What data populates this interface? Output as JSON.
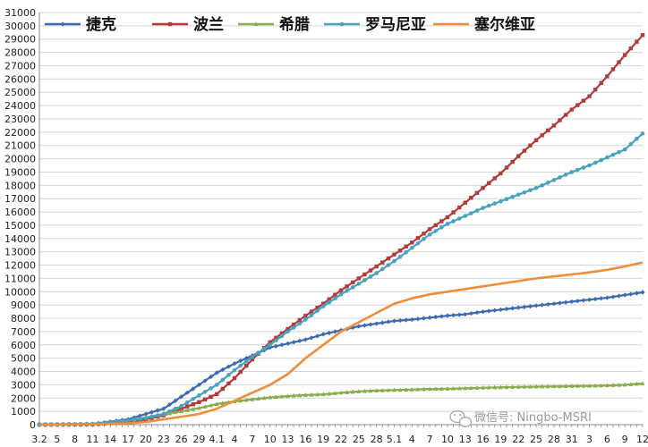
{
  "chart_data": {
    "type": "line",
    "title": "",
    "xlabel": "",
    "ylabel": "",
    "ylim": [
      0,
      31000
    ],
    "yticks": [
      0,
      1000,
      2000,
      3000,
      4000,
      5000,
      6000,
      7000,
      8000,
      9000,
      10000,
      11000,
      12000,
      13000,
      14000,
      15000,
      16000,
      17000,
      18000,
      19000,
      20000,
      21000,
      22000,
      23000,
      24000,
      25000,
      26000,
      27000,
      28000,
      29000,
      30000,
      31000
    ],
    "x_tick_labels": [
      "3.2",
      "5",
      "8",
      "11",
      "14",
      "17",
      "20",
      "23",
      "26",
      "29",
      "4.1",
      "4",
      "7",
      "10",
      "13",
      "16",
      "19",
      "22",
      "25",
      "28",
      "5.1",
      "4",
      "7",
      "10",
      "13",
      "16",
      "19",
      "22",
      "25",
      "28",
      "31",
      "3",
      "6",
      "9",
      "12"
    ],
    "x_tick_day_index": [
      0,
      3,
      6,
      9,
      12,
      15,
      18,
      21,
      24,
      27,
      30,
      33,
      36,
      39,
      42,
      45,
      48,
      51,
      54,
      57,
      60,
      63,
      66,
      69,
      72,
      75,
      78,
      81,
      84,
      87,
      90,
      93,
      96,
      99,
      102
    ],
    "grid": "horizontal",
    "legend_position": "top",
    "series": [
      {
        "name": "捷克",
        "color": "#3d6ab0",
        "marker": "diamond",
        "points": [
          [
            0,
            10
          ],
          [
            9,
            60
          ],
          [
            15,
            400
          ],
          [
            18,
            800
          ],
          [
            21,
            1200
          ],
          [
            24,
            2100
          ],
          [
            27,
            3000
          ],
          [
            30,
            3900
          ],
          [
            33,
            4600
          ],
          [
            36,
            5200
          ],
          [
            39,
            5800
          ],
          [
            42,
            6100
          ],
          [
            45,
            6400
          ],
          [
            48,
            6800
          ],
          [
            51,
            7100
          ],
          [
            54,
            7400
          ],
          [
            57,
            7600
          ],
          [
            60,
            7800
          ],
          [
            63,
            7900
          ],
          [
            66,
            8050
          ],
          [
            69,
            8200
          ],
          [
            72,
            8300
          ],
          [
            75,
            8500
          ],
          [
            78,
            8650
          ],
          [
            81,
            8800
          ],
          [
            84,
            8950
          ],
          [
            87,
            9100
          ],
          [
            90,
            9250
          ],
          [
            93,
            9400
          ],
          [
            96,
            9550
          ],
          [
            99,
            9750
          ],
          [
            102,
            9950
          ]
        ]
      },
      {
        "name": "波兰",
        "color": "#b33a3a",
        "marker": "square",
        "points": [
          [
            0,
            0
          ],
          [
            9,
            20
          ],
          [
            15,
            200
          ],
          [
            18,
            400
          ],
          [
            21,
            700
          ],
          [
            24,
            1200
          ],
          [
            27,
            1700
          ],
          [
            30,
            2300
          ],
          [
            33,
            3500
          ],
          [
            36,
            4900
          ],
          [
            39,
            6200
          ],
          [
            42,
            7200
          ],
          [
            45,
            8200
          ],
          [
            48,
            9100
          ],
          [
            51,
            10100
          ],
          [
            54,
            11000
          ],
          [
            57,
            11900
          ],
          [
            60,
            12800
          ],
          [
            63,
            13700
          ],
          [
            66,
            14700
          ],
          [
            69,
            15600
          ],
          [
            72,
            16700
          ],
          [
            75,
            17800
          ],
          [
            78,
            18900
          ],
          [
            81,
            20200
          ],
          [
            84,
            21400
          ],
          [
            87,
            22500
          ],
          [
            90,
            23700
          ],
          [
            93,
            24700
          ],
          [
            96,
            26200
          ],
          [
            99,
            27800
          ],
          [
            102,
            29300
          ]
        ]
      },
      {
        "name": "希腊",
        "color": "#8aac4e",
        "marker": "triangle",
        "points": [
          [
            0,
            0
          ],
          [
            9,
            60
          ],
          [
            15,
            300
          ],
          [
            18,
            550
          ],
          [
            21,
            800
          ],
          [
            24,
            1000
          ],
          [
            27,
            1250
          ],
          [
            30,
            1550
          ],
          [
            33,
            1750
          ],
          [
            36,
            1900
          ],
          [
            39,
            2050
          ],
          [
            42,
            2150
          ],
          [
            45,
            2230
          ],
          [
            48,
            2280
          ],
          [
            51,
            2400
          ],
          [
            54,
            2500
          ],
          [
            57,
            2560
          ],
          [
            60,
            2600
          ],
          [
            63,
            2640
          ],
          [
            66,
            2680
          ],
          [
            69,
            2700
          ],
          [
            72,
            2740
          ],
          [
            75,
            2780
          ],
          [
            78,
            2810
          ],
          [
            81,
            2840
          ],
          [
            84,
            2860
          ],
          [
            87,
            2880
          ],
          [
            90,
            2900
          ],
          [
            93,
            2920
          ],
          [
            96,
            2950
          ],
          [
            99,
            3000
          ],
          [
            102,
            3100
          ]
        ]
      },
      {
        "name": "罗马尼亚",
        "color": "#4aa3bd",
        "marker": "circle",
        "points": [
          [
            0,
            10
          ],
          [
            9,
            40
          ],
          [
            15,
            300
          ],
          [
            18,
            500
          ],
          [
            21,
            800
          ],
          [
            24,
            1400
          ],
          [
            27,
            2200
          ],
          [
            30,
            3000
          ],
          [
            33,
            4100
          ],
          [
            36,
            5100
          ],
          [
            39,
            6000
          ],
          [
            42,
            7000
          ],
          [
            45,
            7900
          ],
          [
            48,
            8900
          ],
          [
            51,
            9800
          ],
          [
            54,
            10600
          ],
          [
            57,
            11400
          ],
          [
            60,
            12300
          ],
          [
            63,
            13300
          ],
          [
            66,
            14300
          ],
          [
            69,
            15100
          ],
          [
            72,
            15700
          ],
          [
            75,
            16300
          ],
          [
            78,
            16800
          ],
          [
            81,
            17300
          ],
          [
            84,
            17800
          ],
          [
            87,
            18400
          ],
          [
            90,
            19000
          ],
          [
            93,
            19500
          ],
          [
            96,
            20100
          ],
          [
            99,
            20700
          ],
          [
            102,
            21900
          ]
        ]
      },
      {
        "name": "塞尔维亚",
        "color": "#ee8d3a",
        "marker": "none",
        "points": [
          [
            0,
            0
          ],
          [
            9,
            30
          ],
          [
            15,
            100
          ],
          [
            18,
            200
          ],
          [
            21,
            400
          ],
          [
            24,
            600
          ],
          [
            27,
            800
          ],
          [
            30,
            1200
          ],
          [
            33,
            1800
          ],
          [
            36,
            2400
          ],
          [
            39,
            3000
          ],
          [
            42,
            3800
          ],
          [
            45,
            5000
          ],
          [
            48,
            6000
          ],
          [
            51,
            7000
          ],
          [
            54,
            7700
          ],
          [
            57,
            8400
          ],
          [
            60,
            9100
          ],
          [
            63,
            9500
          ],
          [
            66,
            9800
          ],
          [
            69,
            10000
          ],
          [
            72,
            10200
          ],
          [
            75,
            10400
          ],
          [
            78,
            10600
          ],
          [
            81,
            10800
          ],
          [
            84,
            11000
          ],
          [
            87,
            11150
          ],
          [
            90,
            11300
          ],
          [
            93,
            11450
          ],
          [
            96,
            11650
          ],
          [
            99,
            11900
          ],
          [
            102,
            12200
          ]
        ]
      }
    ]
  },
  "watermark": {
    "text": "微信号: Ningbo-MSRI",
    "icon": "wechat-icon"
  }
}
